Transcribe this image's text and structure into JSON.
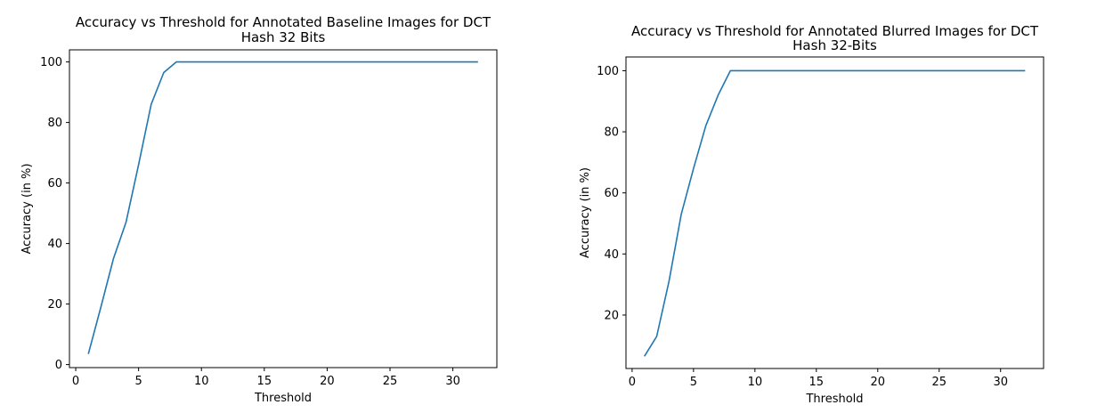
{
  "chart_data": [
    {
      "type": "line",
      "title_line1": "Accuracy vs Threshold for Annotated Baseline Images for DCT",
      "title_line2": "Hash 32 Bits",
      "xlabel": "Threshold",
      "ylabel": "Accuracy (in %)",
      "xlim": [
        -0.5,
        33.5
      ],
      "ylim": [
        -1,
        104
      ],
      "xticks": [
        0,
        5,
        10,
        15,
        20,
        25,
        30
      ],
      "yticks": [
        0,
        20,
        40,
        60,
        80,
        100
      ],
      "grid": false,
      "color": "#1f77b4",
      "x": [
        1,
        2,
        3,
        4,
        5,
        6,
        7,
        8,
        9,
        10,
        11,
        12,
        13,
        14,
        15,
        16,
        17,
        18,
        19,
        20,
        21,
        22,
        23,
        24,
        25,
        26,
        27,
        28,
        29,
        30,
        31,
        32
      ],
      "y": [
        3.5,
        19,
        35,
        47,
        66,
        86,
        96.5,
        100,
        100,
        100,
        100,
        100,
        100,
        100,
        100,
        100,
        100,
        100,
        100,
        100,
        100,
        100,
        100,
        100,
        100,
        100,
        100,
        100,
        100,
        100,
        100,
        100
      ]
    },
    {
      "type": "line",
      "title_line1": "Accuracy vs Threshold for Annotated Blurred Images for DCT",
      "title_line2": "Hash 32-Bits",
      "xlabel": "Threshold",
      "ylabel": "Accuracy (in %)",
      "xlim": [
        -0.5,
        33.5
      ],
      "ylim": [
        2.5,
        104.5
      ],
      "xticks": [
        0,
        5,
        10,
        15,
        20,
        25,
        30
      ],
      "yticks": [
        20,
        40,
        60,
        80,
        100
      ],
      "grid": false,
      "color": "#1f77b4",
      "x": [
        1,
        2,
        3,
        4,
        5,
        6,
        7,
        8,
        9,
        10,
        11,
        12,
        13,
        14,
        15,
        16,
        17,
        18,
        19,
        20,
        21,
        22,
        23,
        24,
        25,
        26,
        27,
        28,
        29,
        30,
        31,
        32
      ],
      "y": [
        6.5,
        13,
        31,
        53,
        68,
        82,
        92,
        100,
        100,
        100,
        100,
        100,
        100,
        100,
        100,
        100,
        100,
        100,
        100,
        100,
        100,
        100,
        100,
        100,
        100,
        100,
        100,
        100,
        100,
        100,
        100,
        100
      ]
    }
  ]
}
